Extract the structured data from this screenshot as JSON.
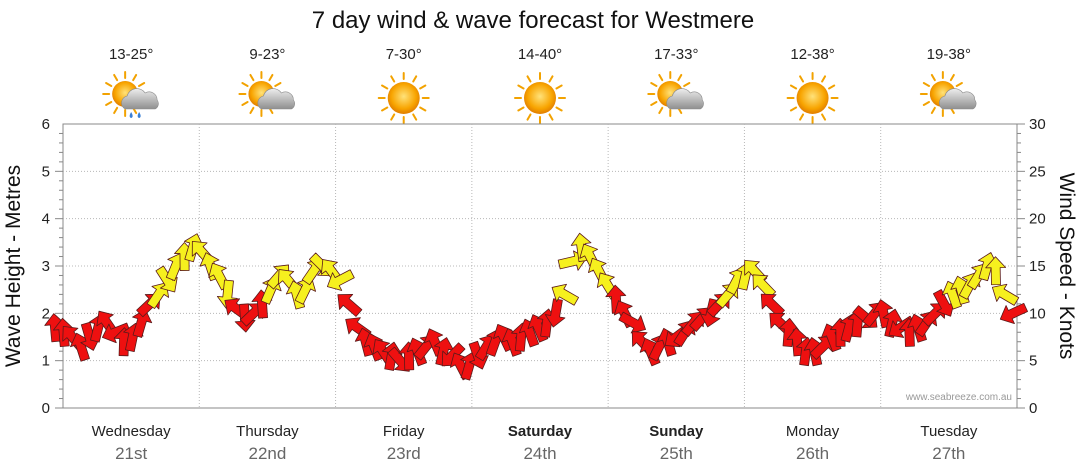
{
  "chart_data": {
    "type": "line",
    "title": "7 day wind & wave forecast for Westmere",
    "ylabel_left": "Wave Height - Metres",
    "ylabel_right": "Wind Speed - Knots",
    "y_left_range": [
      0,
      6
    ],
    "y_left_ticks": [
      "0",
      "1",
      "2",
      "3",
      "4",
      "5",
      "6"
    ],
    "y_right_range": [
      0,
      30
    ],
    "y_right_ticks": [
      "0",
      "5",
      "10",
      "15",
      "20",
      "25",
      "30"
    ],
    "grid": true,
    "credit": "www.seabreeze.com.au",
    "days": [
      {
        "name": "Wednesday",
        "date": "21st",
        "temp": "13-25°",
        "weather": "sun-cloud-rain-icon",
        "bold": false
      },
      {
        "name": "Thursday",
        "date": "22nd",
        "temp": "9-23°",
        "weather": "sun-cloud-icon",
        "bold": false
      },
      {
        "name": "Friday",
        "date": "23rd",
        "temp": "7-30°",
        "weather": "sun-icon",
        "bold": false
      },
      {
        "name": "Saturday",
        "date": "24th",
        "temp": "14-40°",
        "weather": "sun-icon",
        "bold": true
      },
      {
        "name": "Sunday",
        "date": "25th",
        "temp": "17-33°",
        "weather": "sun-cloud-icon",
        "bold": true
      },
      {
        "name": "Monday",
        "date": "26th",
        "temp": "12-38°",
        "weather": "sun-icon",
        "bold": false
      },
      {
        "name": "Tuesday",
        "date": "27th",
        "temp": "19-38°",
        "weather": "sun-cloud-icon",
        "bold": false
      }
    ],
    "series": [
      {
        "name": "Wind Speed",
        "units": "knots",
        "values": [
          8.5,
          8,
          7.5,
          6.5,
          7.5,
          8.5,
          9,
          8,
          7,
          7.5,
          9,
          11,
          12,
          13.5,
          15,
          16,
          17,
          16.5,
          15,
          14,
          12,
          10.5,
          9.5,
          10,
          11,
          12.5,
          14,
          13.5,
          12,
          12.5,
          14.5,
          15,
          14.5,
          13.5,
          11,
          8.5,
          7,
          6.5,
          6,
          5.5,
          5,
          5.5,
          6,
          6.5,
          7,
          6,
          5.5,
          4.5,
          4.5,
          5.5,
          6.5,
          7,
          7.5,
          7,
          7.5,
          8,
          8.5,
          9,
          10,
          12,
          15.5,
          17,
          16,
          14.5,
          13,
          11.5,
          10,
          9,
          7,
          6,
          6.5,
          7,
          7.5,
          8,
          9,
          9.5,
          10,
          11,
          12,
          13.5,
          14,
          14.5,
          13,
          11,
          9,
          8,
          7,
          6,
          6,
          6.5,
          7.5,
          8,
          8.5,
          9,
          9.5,
          10,
          10,
          9,
          8.5,
          8,
          8.5,
          9,
          10,
          11,
          12,
          12.5,
          13,
          14,
          15,
          14.5,
          12,
          10
        ],
        "colors": {
          "low": "#ee1010",
          "high": "#f6f01e"
        }
      }
    ],
    "colors": {
      "grid": "#b8b8b8",
      "axis": "#888888",
      "arrow_stroke": "#7a1010"
    }
  }
}
